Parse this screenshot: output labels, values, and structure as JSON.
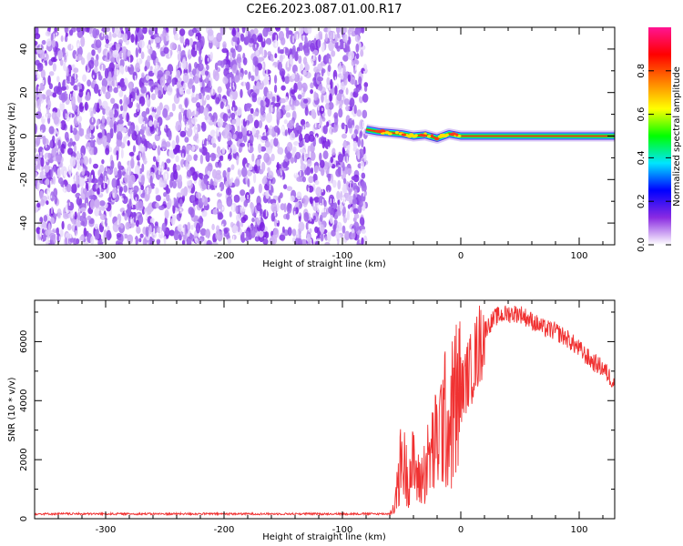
{
  "title": "C2E6.2023.087.01.00.R17",
  "chart_data": [
    {
      "type": "heatmap",
      "xlabel": "Height of straight line (km)",
      "ylabel": "Frequency (Hz)",
      "xlim": [
        -360,
        130
      ],
      "ylim": [
        -50,
        50
      ],
      "xticks": [
        -300,
        -200,
        -100,
        0,
        100
      ],
      "yticks": [
        -40,
        -20,
        0,
        20,
        40
      ],
      "noise_region_x": [
        -360,
        -80
      ],
      "signal_trace": {
        "x": [
          -80,
          -70,
          -60,
          -50,
          -40,
          -30,
          -20,
          -10,
          0,
          50,
          100,
          130
        ],
        "y": [
          3,
          2,
          1.5,
          1,
          0,
          0.5,
          -1,
          1,
          0,
          0,
          0,
          0
        ]
      },
      "colorbar": {
        "label": "Normalized spectral amplitude",
        "ticks": [
          0.0,
          0.2,
          0.4,
          0.6,
          0.8
        ],
        "range": [
          0,
          1
        ],
        "colors": [
          "#ffffff",
          "#8a2be2",
          "#0000ff",
          "#00e5ff",
          "#00ff00",
          "#ffff00",
          "#ff8000",
          "#ff0000",
          "#ff1493"
        ]
      }
    },
    {
      "type": "line",
      "xlabel": "Height of straight line (km)",
      "ylabel": "SNR (10 * v/v)",
      "xlim": [
        -360,
        130
      ],
      "ylim": [
        0,
        7400
      ],
      "xticks": [
        -300,
        -200,
        -100,
        0,
        100
      ],
      "yticks": [
        0,
        2000,
        4000,
        6000
      ],
      "color": "#f03232",
      "series": [
        {
          "x": [
            -360,
            -300,
            -200,
            -100,
            -60,
            -55,
            -50,
            -45,
            -40,
            -35,
            -30,
            -25,
            -20,
            -15,
            -10,
            -5,
            0,
            5,
            10,
            20,
            30,
            40,
            50,
            60,
            70,
            80,
            90,
            100,
            110,
            120,
            130
          ],
          "y": [
            150,
            150,
            150,
            150,
            150,
            600,
            2100,
            1400,
            1800,
            1200,
            1700,
            2200,
            2600,
            3400,
            3100,
            3900,
            4200,
            4800,
            5200,
            6400,
            6850,
            6950,
            6950,
            6700,
            6450,
            6350,
            6100,
            5750,
            5350,
            5100,
            4600
          ]
        }
      ]
    }
  ]
}
